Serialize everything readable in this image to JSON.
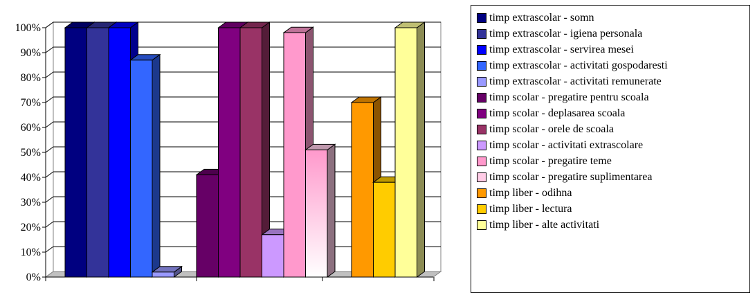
{
  "chart_data": {
    "type": "bar",
    "title": "",
    "xlabel": "",
    "ylabel": "",
    "ylim": [
      0,
      100
    ],
    "y_ticks": [
      "0%",
      "10%",
      "20%",
      "30%",
      "40%",
      "50%",
      "60%",
      "70%",
      "80%",
      "90%",
      "100%"
    ],
    "grid": true,
    "legend_position": "right",
    "three_d": true,
    "groups": [
      {
        "series": [
          {
            "name": "timp extrascolar - somn",
            "value": 100,
            "color": "#000080"
          },
          {
            "name": "timp extrascolar - igiena personala",
            "value": 100,
            "color": "#333399"
          },
          {
            "name": "timp extrascolar - servirea mesei",
            "value": 100,
            "color": "#0000FF"
          },
          {
            "name": "timp extrascolar - activitati gospodaresti",
            "value": 87,
            "color": "#3366FF"
          },
          {
            "name": "timp extrascolar - activitati remunerate",
            "value": 2,
            "color": "#9999FF"
          }
        ]
      },
      {
        "series": [
          {
            "name": "timp scolar - pregatire pentru scoala",
            "value": 41,
            "color": "#660066"
          },
          {
            "name": "timp scolar - deplasarea scoala",
            "value": 100,
            "color": "#800080"
          },
          {
            "name": "timp scolar - orele de scoala",
            "value": 100,
            "color": "#993366"
          },
          {
            "name": "timp scolar - activitati extrascolare",
            "value": 17,
            "color": "#CC99FF"
          },
          {
            "name": "timp scolar - pregatire teme",
            "value": 98,
            "color": "#FF99CC"
          },
          {
            "name": "timp scolar - pregatire suplimentarea",
            "value": 51,
            "color": "#FFCCE6",
            "gradient": true
          }
        ]
      },
      {
        "series": [
          {
            "name": "timp liber - odihna",
            "value": 70,
            "color": "#FF9900"
          },
          {
            "name": "timp liber - lectura",
            "value": 38,
            "color": "#FFCC00"
          },
          {
            "name": "timp liber - alte activitati",
            "value": 100,
            "color": "#FFFF99"
          }
        ]
      }
    ]
  }
}
